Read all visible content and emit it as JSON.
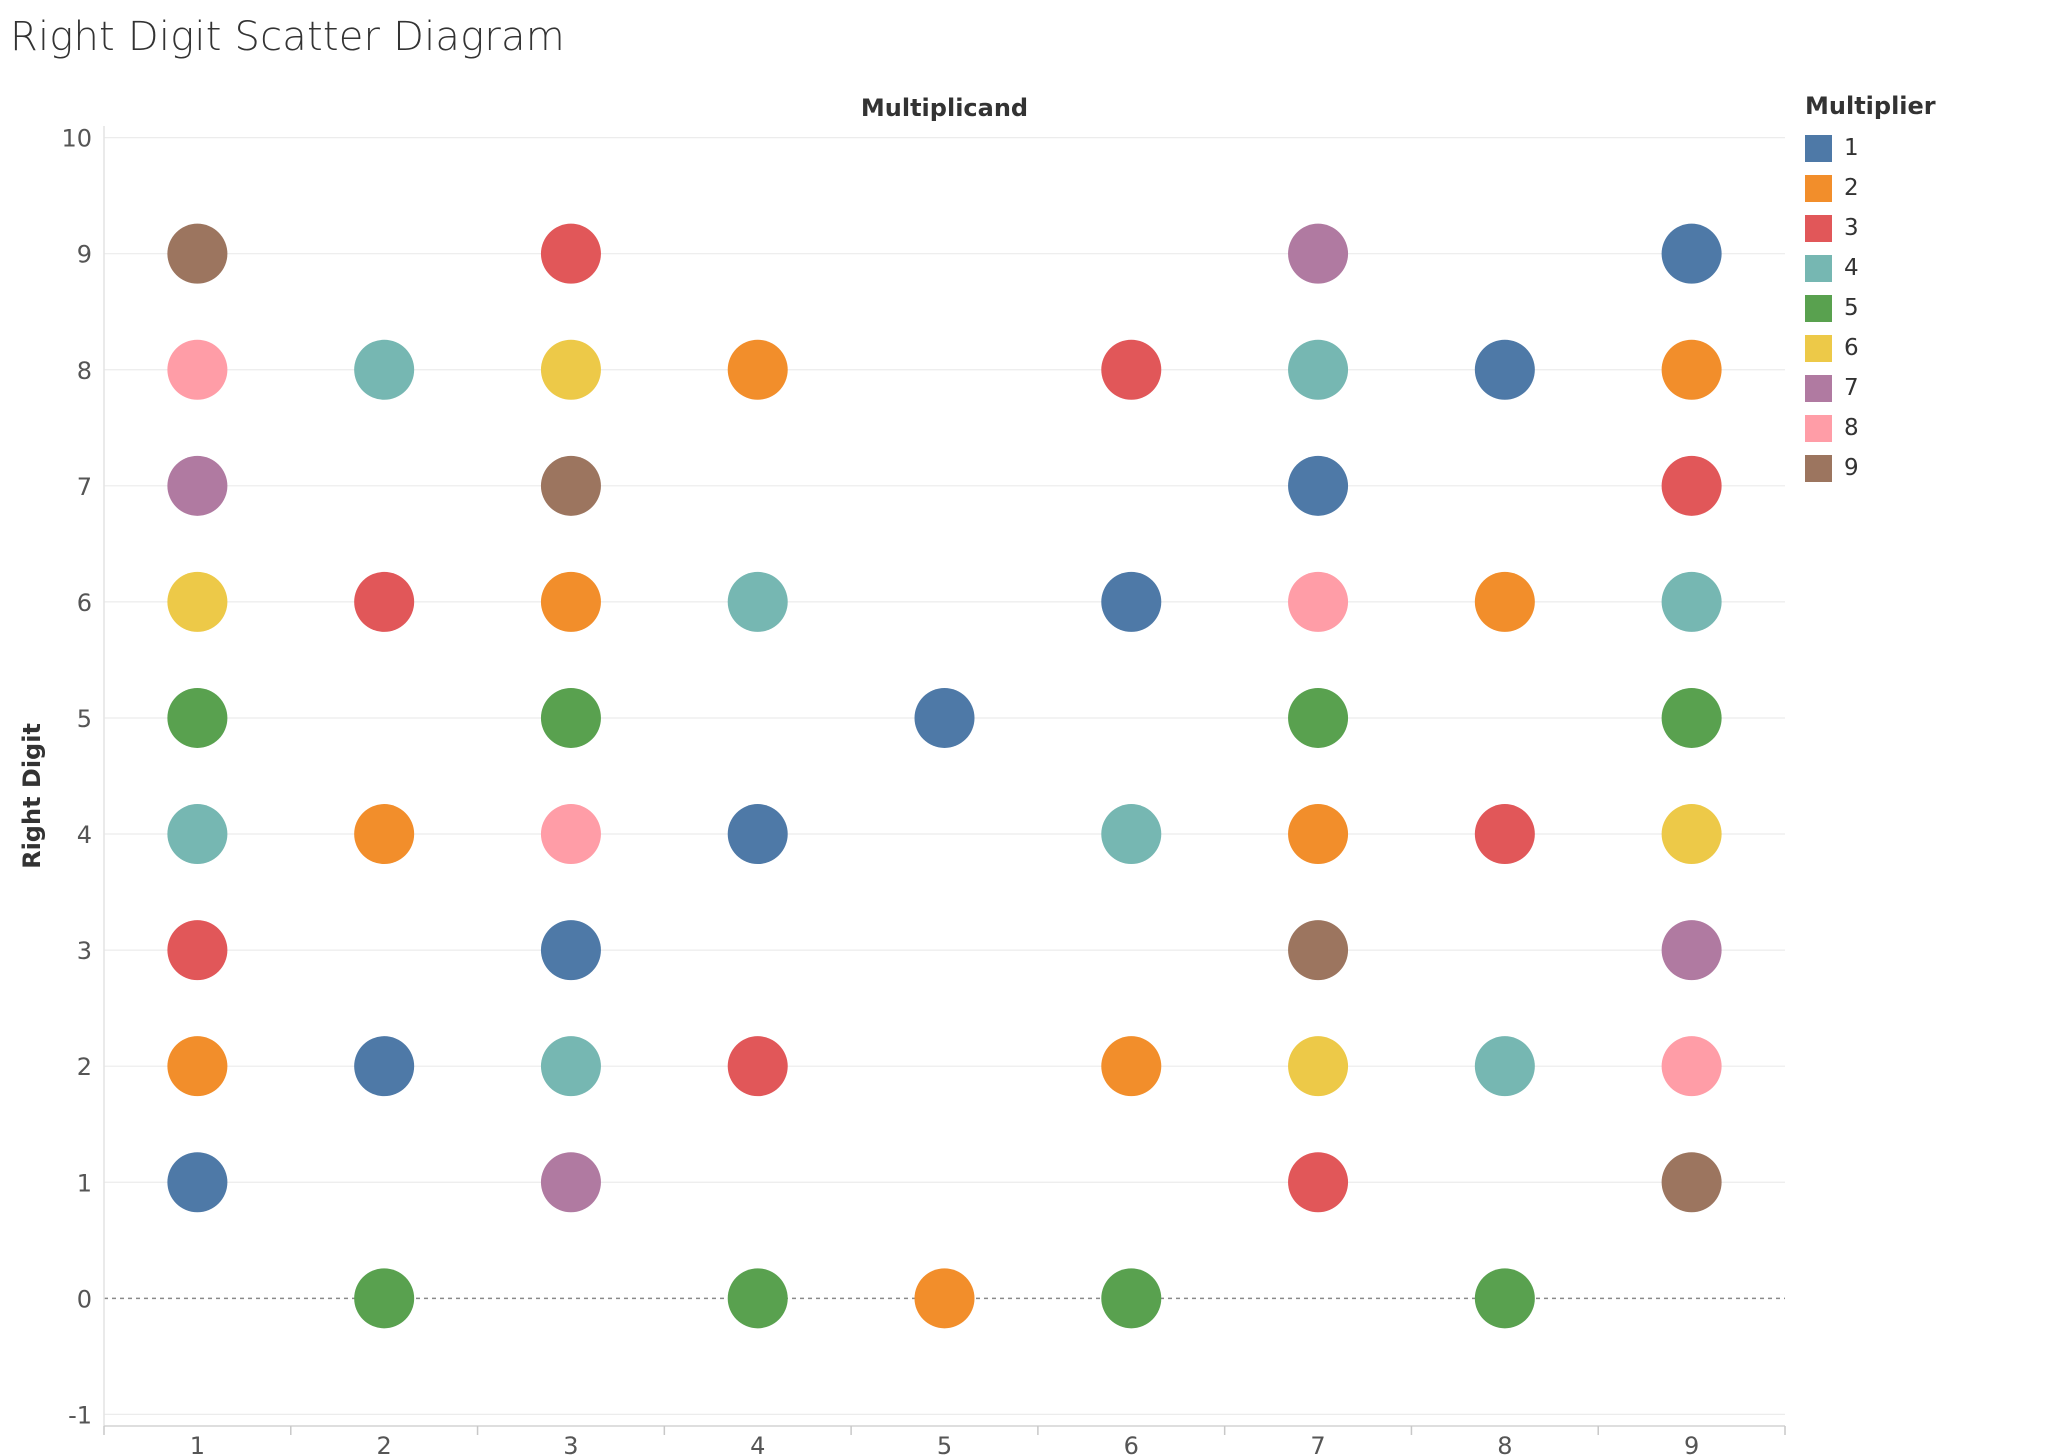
{
  "chart_data": {
    "type": "scatter",
    "title": "Right Digit Scatter Diagram",
    "xlabel": "Multiplicand",
    "ylabel": "Right Digit",
    "x_ticks": [
      1,
      2,
      3,
      4,
      5,
      6,
      7,
      8,
      9
    ],
    "y_ticks": [
      -1,
      0,
      1,
      2,
      3,
      4,
      5,
      6,
      7,
      8,
      9,
      10
    ],
    "xlim": [
      0.5,
      9.5
    ],
    "ylim": [
      -1.1,
      10.1
    ],
    "grid": true,
    "zero_line": "dashed",
    "legend": {
      "title": "Multiplier",
      "placement": "right"
    },
    "series": [
      {
        "name": "1",
        "color": "#4e79a7",
        "points": [
          [
            1,
            1
          ],
          [
            2,
            2
          ],
          [
            3,
            3
          ],
          [
            4,
            4
          ],
          [
            5,
            5
          ],
          [
            6,
            6
          ],
          [
            7,
            7
          ],
          [
            8,
            8
          ],
          [
            9,
            9
          ]
        ]
      },
      {
        "name": "2",
        "color": "#f28e2b",
        "points": [
          [
            1,
            2
          ],
          [
            2,
            4
          ],
          [
            3,
            6
          ],
          [
            4,
            8
          ],
          [
            5,
            0
          ],
          [
            6,
            2
          ],
          [
            7,
            4
          ],
          [
            8,
            6
          ],
          [
            9,
            8
          ]
        ]
      },
      {
        "name": "3",
        "color": "#e15759",
        "points": [
          [
            1,
            3
          ],
          [
            2,
            6
          ],
          [
            3,
            9
          ],
          [
            4,
            2
          ],
          [
            6,
            8
          ],
          [
            7,
            1
          ],
          [
            8,
            4
          ],
          [
            9,
            7
          ]
        ]
      },
      {
        "name": "4",
        "color": "#76b7b2",
        "points": [
          [
            1,
            4
          ],
          [
            2,
            8
          ],
          [
            3,
            2
          ],
          [
            4,
            6
          ],
          [
            6,
            4
          ],
          [
            7,
            8
          ],
          [
            8,
            2
          ],
          [
            9,
            6
          ]
        ]
      },
      {
        "name": "5",
        "color": "#59a14f",
        "points": [
          [
            1,
            5
          ],
          [
            2,
            0
          ],
          [
            3,
            5
          ],
          [
            4,
            0
          ],
          [
            6,
            0
          ],
          [
            7,
            5
          ],
          [
            8,
            0
          ],
          [
            9,
            5
          ]
        ]
      },
      {
        "name": "6",
        "color": "#edc948",
        "points": [
          [
            1,
            6
          ],
          [
            3,
            8
          ],
          [
            7,
            2
          ],
          [
            9,
            4
          ]
        ]
      },
      {
        "name": "7",
        "color": "#b07aa1",
        "points": [
          [
            1,
            7
          ],
          [
            3,
            1
          ],
          [
            7,
            9
          ],
          [
            9,
            3
          ]
        ]
      },
      {
        "name": "8",
        "color": "#ff9da7",
        "points": [
          [
            1,
            8
          ],
          [
            3,
            4
          ],
          [
            7,
            6
          ],
          [
            9,
            2
          ]
        ]
      },
      {
        "name": "9",
        "color": "#9c755f",
        "points": [
          [
            1,
            9
          ],
          [
            3,
            7
          ],
          [
            7,
            3
          ],
          [
            9,
            1
          ]
        ]
      }
    ]
  }
}
